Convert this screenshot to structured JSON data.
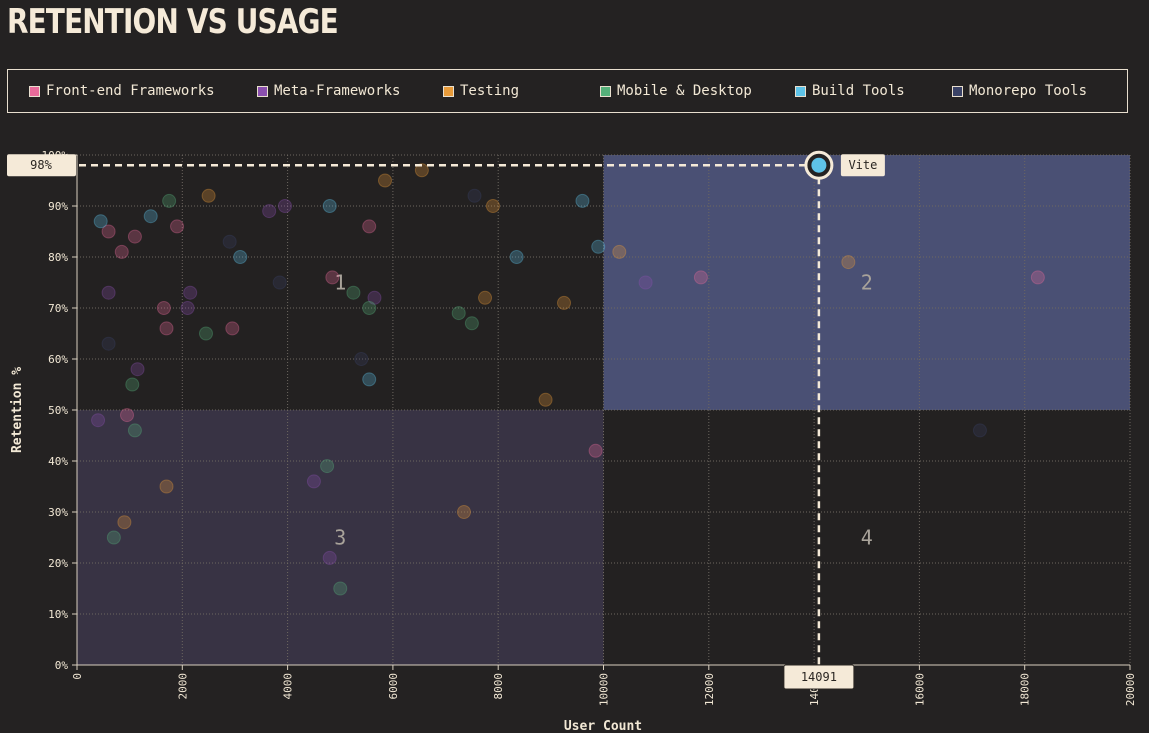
{
  "title": "RETENTION VS USAGE",
  "legend": [
    {
      "label": "Front-end Frameworks",
      "color": "#e86a9a"
    },
    {
      "label": "Meta-Frameworks",
      "color": "#8a4fae"
    },
    {
      "label": "Testing",
      "color": "#e89b3a"
    },
    {
      "label": "Mobile & Desktop",
      "color": "#55b07a"
    },
    {
      "label": "Build Tools",
      "color": "#5ec3e8"
    },
    {
      "label": "Monorepo Tools",
      "color": "#3a4266"
    }
  ],
  "chart_data": {
    "type": "scatter",
    "title": "RETENTION VS USAGE",
    "xlabel": "User Count",
    "ylabel": "Retention %",
    "xlim": [
      0,
      20000
    ],
    "ylim": [
      0,
      100
    ],
    "x_ticks": [
      "0",
      "2000",
      "4000",
      "6000",
      "8000",
      "10000",
      "12000",
      "14000",
      "16000",
      "18000",
      "20000"
    ],
    "y_ticks": [
      "0%",
      "10%",
      "20%",
      "30%",
      "40%",
      "50%",
      "60%",
      "70%",
      "80%",
      "90%",
      "100%"
    ],
    "quadrants": [
      "1",
      "2",
      "3",
      "4"
    ],
    "highlight": {
      "name": "Vite",
      "x": 14091,
      "y": 98,
      "x_label": "14091",
      "y_label": "98%",
      "category": "Build Tools"
    },
    "series": [
      {
        "name": "Front-end Frameworks",
        "points": [
          [
            1650,
            70
          ],
          [
            1700,
            66
          ],
          [
            1900,
            86
          ],
          [
            1100,
            84
          ],
          [
            850,
            81
          ],
          [
            2950,
            66
          ],
          [
            5550,
            86
          ],
          [
            9850,
            42
          ],
          [
            950,
            49
          ],
          [
            11850,
            76
          ],
          [
            18250,
            76
          ],
          [
            4850,
            76
          ],
          [
            600,
            85
          ]
        ]
      },
      {
        "name": "Meta-Frameworks",
        "points": [
          [
            600,
            73
          ],
          [
            2150,
            73
          ],
          [
            2100,
            70
          ],
          [
            3650,
            89
          ],
          [
            3950,
            90
          ],
          [
            1150,
            58
          ],
          [
            4800,
            21
          ],
          [
            4500,
            36
          ],
          [
            10800,
            75
          ],
          [
            5650,
            72
          ],
          [
            400,
            48
          ]
        ]
      },
      {
        "name": "Testing",
        "points": [
          [
            2500,
            92
          ],
          [
            5850,
            95
          ],
          [
            6550,
            97
          ],
          [
            7900,
            90
          ],
          [
            7750,
            72
          ],
          [
            9250,
            71
          ],
          [
            1700,
            35
          ],
          [
            900,
            28
          ],
          [
            7350,
            30
          ],
          [
            8900,
            52
          ],
          [
            10300,
            81
          ],
          [
            14650,
            79
          ]
        ]
      },
      {
        "name": "Mobile & Desktop",
        "points": [
          [
            1750,
            91
          ],
          [
            2450,
            65
          ],
          [
            5250,
            73
          ],
          [
            5550,
            70
          ],
          [
            7250,
            69
          ],
          [
            7500,
            67
          ],
          [
            1050,
            55
          ],
          [
            1100,
            46
          ],
          [
            4750,
            39
          ],
          [
            5000,
            15
          ],
          [
            700,
            25
          ]
        ]
      },
      {
        "name": "Build Tools",
        "points": [
          [
            450,
            87
          ],
          [
            1400,
            88
          ],
          [
            3100,
            80
          ],
          [
            4800,
            90
          ],
          [
            5550,
            56
          ],
          [
            8350,
            80
          ],
          [
            9600,
            91
          ],
          [
            9900,
            82
          ],
          [
            14091,
            98
          ]
        ]
      },
      {
        "name": "Monorepo Tools",
        "points": [
          [
            600,
            63
          ],
          [
            2900,
            83
          ],
          [
            3850,
            75
          ],
          [
            7550,
            92
          ],
          [
            5400,
            60
          ],
          [
            17150,
            46
          ]
        ]
      }
    ]
  }
}
